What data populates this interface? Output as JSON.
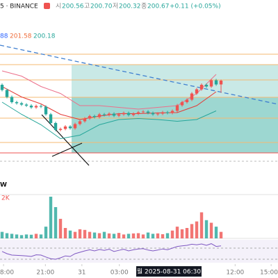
{
  "chart_data": {
    "type": "candlestick",
    "symbol": "5 · BINANCE",
    "legend": {
      "labels": [
        "시",
        "고",
        "저",
        "종"
      ],
      "values": [
        "200.56",
        "200.70",
        "200.32",
        "200.67"
      ],
      "change": "+0.11 (+0.05%)"
    },
    "band_legend": [
      "88",
      "201.58",
      "200.18"
    ],
    "volume_label": "2K",
    "panel_label": "W",
    "crosshair_label": "월 2025-08-31  06:30",
    "up_color": "#ef5350",
    "down_color": "#26a69a",
    "open": [
      200.55,
      200.4,
      200.2,
      200.05,
      200.02,
      199.98,
      199.95,
      199.9,
      199.94,
      199.92,
      199.7,
      199.45,
      199.25,
      199.28,
      199.35,
      199.3,
      199.42,
      199.5,
      199.58,
      199.65,
      199.62,
      199.7,
      199.68,
      199.72,
      199.66,
      199.7,
      199.74,
      199.68,
      199.72,
      199.76,
      199.78,
      199.74,
      199.7,
      199.72,
      199.76,
      199.74,
      199.8,
      199.96,
      200.05,
      200.12,
      200.3,
      200.42,
      200.55,
      200.5,
      200.68,
      200.56
    ],
    "high": [
      200.59,
      200.44,
      200.24,
      200.09,
      200.06,
      200.02,
      199.99,
      199.98,
      199.98,
      199.96,
      199.74,
      199.49,
      199.32,
      199.39,
      199.39,
      199.46,
      199.54,
      199.62,
      199.69,
      199.69,
      199.74,
      199.74,
      199.76,
      199.76,
      199.74,
      199.78,
      199.78,
      199.76,
      199.8,
      199.82,
      199.82,
      199.78,
      199.76,
      199.8,
      199.8,
      199.84,
      200.0,
      200.09,
      200.16,
      200.34,
      200.46,
      200.59,
      200.59,
      200.72,
      200.72,
      200.7
    ],
    "low": [
      200.36,
      200.16,
      200.01,
      199.98,
      199.94,
      199.91,
      199.86,
      199.86,
      199.88,
      199.66,
      199.41,
      199.21,
      199.21,
      199.24,
      199.26,
      199.26,
      199.38,
      199.46,
      199.54,
      199.58,
      199.58,
      199.64,
      199.64,
      199.62,
      199.62,
      199.66,
      199.64,
      199.64,
      199.68,
      199.72,
      199.7,
      199.66,
      199.66,
      199.68,
      199.7,
      199.7,
      199.76,
      199.92,
      200.01,
      200.08,
      200.26,
      200.38,
      200.46,
      200.46,
      200.52,
      200.32
    ],
    "close": [
      200.4,
      200.2,
      200.05,
      200.02,
      199.98,
      199.95,
      199.9,
      199.94,
      199.92,
      199.7,
      199.45,
      199.25,
      199.28,
      199.35,
      199.3,
      199.42,
      199.5,
      199.58,
      199.65,
      199.62,
      199.7,
      199.68,
      199.72,
      199.66,
      199.7,
      199.74,
      199.68,
      199.72,
      199.76,
      199.78,
      199.74,
      199.7,
      199.72,
      199.76,
      199.74,
      199.8,
      199.96,
      200.05,
      200.12,
      200.3,
      200.42,
      200.55,
      200.5,
      200.68,
      200.56,
      200.67
    ],
    "volume": [
      500,
      400,
      350,
      300,
      250,
      300,
      280,
      350,
      300,
      900,
      3200,
      2400,
      1500,
      800,
      600,
      500,
      700,
      650,
      500,
      450,
      400,
      500,
      380,
      350,
      420,
      300,
      350,
      380,
      400,
      300,
      450,
      350,
      380,
      320,
      400,
      600,
      900,
      700,
      800,
      1100,
      1300,
      2000,
      1400,
      1200,
      900,
      500
    ],
    "rsi": [
      48,
      40,
      35,
      34,
      33,
      32,
      30,
      36,
      35,
      28,
      22,
      20,
      25,
      32,
      30,
      40,
      45,
      50,
      54,
      50,
      55,
      52,
      56,
      48,
      52,
      56,
      50,
      54,
      57,
      58,
      53,
      50,
      53,
      57,
      54,
      60,
      66,
      68,
      70,
      74,
      72,
      75,
      70,
      76,
      66,
      68
    ],
    "rsi_color": "#7e57c2",
    "band_x": [
      0,
      4,
      8,
      12,
      16,
      20,
      24,
      28,
      32,
      36,
      40,
      44
    ],
    "bands": [
      {
        "color": "#ec6f8a",
        "values": [
          200.95,
          200.8,
          200.5,
          200.3,
          199.95,
          199.95,
          199.9,
          199.85,
          199.9,
          199.95,
          200.3,
          200.85
        ]
      },
      {
        "color": "#e53935",
        "values": [
          200.5,
          200.2,
          200.0,
          199.7,
          199.55,
          199.65,
          199.72,
          199.72,
          199.74,
          199.75,
          199.95,
          200.35
        ]
      },
      {
        "color": "#26a69a",
        "values": [
          200.05,
          199.7,
          199.4,
          199.0,
          199.1,
          199.4,
          199.55,
          199.58,
          199.55,
          199.5,
          199.55,
          199.8
        ]
      }
    ],
    "xlim": [
      -0.43,
      56.71
    ],
    "ylim": [
      198.23,
      202.23
    ],
    "vlim": [
      0,
      4000
    ],
    "rsilim": [
      0,
      100
    ],
    "xticks": [
      {
        "value": 0.3,
        "label": "8:00"
      },
      {
        "value": 8.9,
        "label": "21:00"
      },
      {
        "value": 16.4,
        "label": "31"
      },
      {
        "value": 24.1,
        "label": "03:00"
      },
      {
        "value": 47.9,
        "label": "12:00"
      },
      {
        "value": 55.3,
        "label": "15:00"
      }
    ]
  }
}
